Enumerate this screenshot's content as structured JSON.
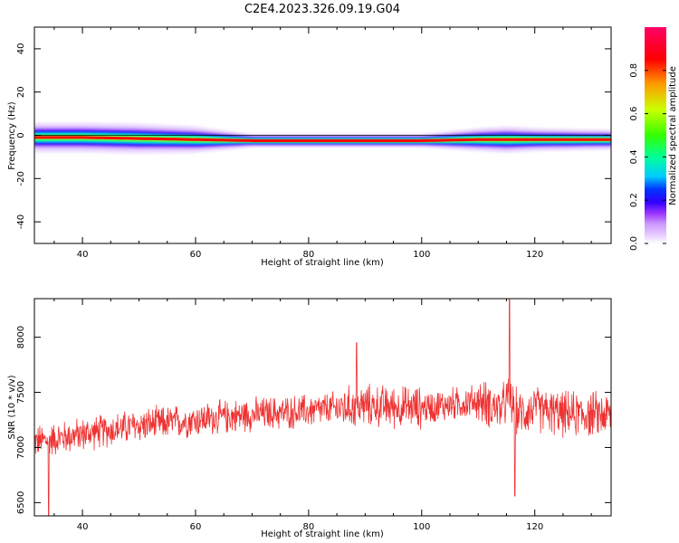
{
  "title": "C2E4.2023.326.09.19.G04",
  "chart_data": [
    {
      "type": "heatmap",
      "name": "spectrogram",
      "xlabel": "Height of straight line (km)",
      "ylabel": "Frequency (Hz)",
      "xlim": [
        31.5,
        133.5
      ],
      "ylim": [
        -50,
        50
      ],
      "x_ticks": [
        40,
        60,
        80,
        100,
        120
      ],
      "y_ticks": [
        -40,
        -20,
        0,
        20,
        40
      ],
      "colorbar": {
        "label": "Normalized spectral amplitude",
        "range": [
          0,
          1
        ],
        "ticks": [
          0.0,
          0.2,
          0.4,
          0.6,
          0.8
        ],
        "colormap": [
          "#ffffff",
          "#e6ccff",
          "#cc99ff",
          "#9933ff",
          "#3300ff",
          "#0033ff",
          "#00ccff",
          "#00ff99",
          "#33ff00",
          "#ccff00",
          "#ff9900",
          "#ff0000",
          "#ff0066"
        ]
      },
      "ridge": {
        "description_freq_hz": -2,
        "x": [
          31.5,
          40,
          50,
          60,
          70,
          80,
          90,
          100,
          110,
          115,
          120,
          133.5
        ],
        "freq": [
          -1.0,
          -1.0,
          -1.5,
          -2.0,
          -2.5,
          -2.5,
          -2.5,
          -2.5,
          -2.0,
          -2.0,
          -2.0,
          -2.0
        ],
        "halfwidth_hz": [
          4.5,
          4.5,
          4.5,
          4.0,
          2.0,
          2.0,
          2.0,
          2.0,
          3.5,
          4.0,
          3.5,
          3.0
        ]
      }
    },
    {
      "type": "line",
      "name": "snr",
      "xlabel": "Height of straight line (km)",
      "ylabel": "SNR (10 * v/v)",
      "xlim": [
        31.5,
        133.5
      ],
      "ylim": [
        6380,
        8350
      ],
      "x_ticks": [
        40,
        60,
        80,
        100,
        120
      ],
      "y_ticks": [
        6500,
        7000,
        7500,
        8000
      ],
      "color": "#ee3333",
      "trend": {
        "x": [
          31.5,
          40,
          50,
          60,
          70,
          80,
          90,
          100,
          110,
          114,
          115.5,
          117,
          120,
          125,
          133.5
        ],
        "y": [
          7050,
          7120,
          7200,
          7250,
          7300,
          7330,
          7380,
          7360,
          7420,
          7350,
          7450,
          7300,
          7350,
          7300,
          7300
        ]
      },
      "noise_amplitude": 180,
      "sample_count": 1400,
      "extremes": [
        {
          "x": 34.0,
          "y": 6380
        },
        {
          "x": 88.5,
          "y": 7950
        },
        {
          "x": 115.5,
          "y": 8350
        },
        {
          "x": 116.5,
          "y": 6560
        }
      ]
    }
  ]
}
